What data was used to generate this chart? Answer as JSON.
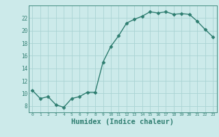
{
  "x": [
    0,
    1,
    2,
    3,
    4,
    5,
    6,
    7,
    8,
    9,
    10,
    11,
    12,
    13,
    14,
    15,
    16,
    17,
    18,
    19,
    20,
    21,
    22,
    23
  ],
  "y": [
    10.5,
    9.2,
    9.5,
    8.2,
    7.8,
    9.2,
    9.5,
    10.2,
    10.2,
    15.0,
    17.5,
    19.2,
    21.2,
    21.8,
    22.3,
    23.0,
    22.8,
    23.0,
    22.6,
    22.7,
    22.6,
    21.5,
    20.2,
    19.0
  ],
  "line_color": "#2e7d70",
  "marker": "D",
  "marker_size": 2.5,
  "linewidth": 1.0,
  "bg_color": "#cceaea",
  "grid_color": "#aad4d4",
  "axis_bg": "#cceaea",
  "xlabel": "Humidex (Indice chaleur)",
  "xlabel_fontsize": 7.5,
  "xlabel_color": "#2e7d70",
  "tick_label_color": "#2e7d70",
  "ylim": [
    7,
    24
  ],
  "xlim": [
    -0.5,
    23.5
  ],
  "yticks": [
    8,
    10,
    12,
    14,
    16,
    18,
    20,
    22
  ],
  "xticks": [
    0,
    1,
    2,
    3,
    4,
    5,
    6,
    7,
    8,
    9,
    10,
    11,
    12,
    13,
    14,
    15,
    16,
    17,
    18,
    19,
    20,
    21,
    22,
    23
  ],
  "xtick_labels": [
    "0",
    "1",
    "2",
    "3",
    "4",
    "5",
    "6",
    "7",
    "8",
    "9",
    "10",
    "11",
    "12",
    "13",
    "14",
    "15",
    "16",
    "17",
    "18",
    "19",
    "20",
    "21",
    "22",
    "23"
  ]
}
